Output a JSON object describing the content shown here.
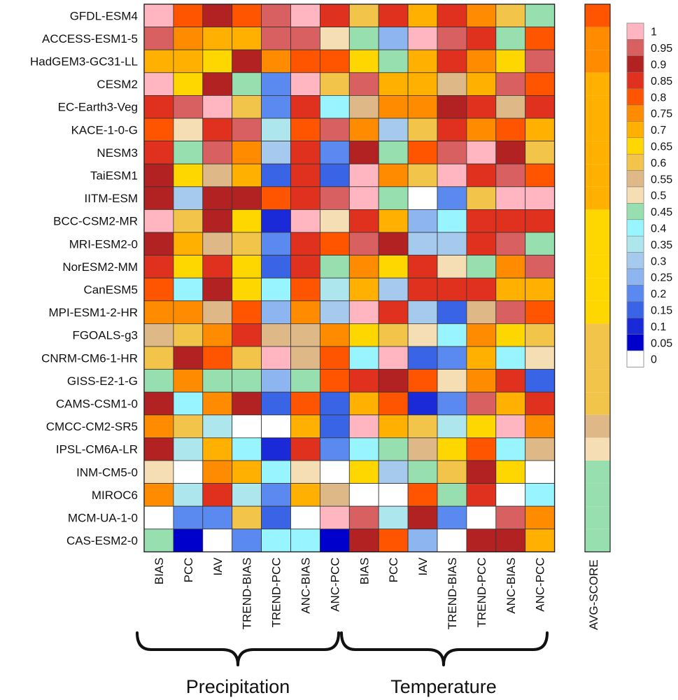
{
  "chart_data": {
    "type": "heatmap",
    "rows": [
      "GFDL-ESM4",
      "ACCESS-ESM1-5",
      "HadGEM3-GC31-LL",
      "CESM2",
      "EC-Earth3-Veg",
      "KACE-1-0-G",
      "NESM3",
      "TaiESM1",
      "IITM-ESM",
      "BCC-CSM2-MR",
      "MRI-ESM2-0",
      "NorESM2-MM",
      "CanESM5",
      "MPI-ESM1-2-HR",
      "FGOALS-g3",
      "CNRM-CM6-1-HR",
      "GISS-E2-1-G",
      "CAMS-CSM1-0",
      "CMCC-CM2-SR5",
      "IPSL-CM6A-LR",
      "INM-CM5-0",
      "MIROC6",
      "MCM-UA-1-0",
      "CAS-ESM2-0"
    ],
    "columns": [
      "BIAS",
      "PCC",
      "IAV",
      "TREND-BIAS",
      "TREND-PCC",
      "ANC-BIAS",
      "ANC-PCC",
      "BIAS",
      "PCC",
      "IAV",
      "TREND-BIAS",
      "TREND-PCC",
      "ANC-BIAS",
      "ANC-PCC"
    ],
    "groups": [
      {
        "name": "Precipitation",
        "start": 0,
        "end": 6
      },
      {
        "name": "Temperature",
        "start": 7,
        "end": 13
      }
    ],
    "values": [
      [
        1.0,
        0.8,
        0.9,
        0.8,
        0.95,
        1.0,
        0.85,
        0.6,
        0.85,
        0.7,
        0.85,
        0.75,
        0.6,
        0.45
      ],
      [
        0.95,
        0.75,
        0.7,
        0.7,
        0.95,
        0.95,
        0.5,
        0.45,
        0.25,
        1.0,
        0.95,
        0.85,
        0.45,
        0.8
      ],
      [
        0.7,
        0.7,
        0.65,
        0.9,
        0.75,
        0.8,
        0.8,
        0.65,
        0.45,
        0.7,
        0.85,
        0.75,
        0.65,
        0.95
      ],
      [
        1.0,
        0.65,
        0.9,
        0.45,
        0.2,
        1.0,
        0.6,
        0.95,
        0.7,
        0.7,
        0.55,
        0.7,
        0.95,
        0.8
      ],
      [
        0.85,
        0.95,
        1.0,
        0.6,
        0.2,
        0.85,
        0.4,
        0.55,
        0.75,
        0.75,
        0.9,
        0.85,
        0.55,
        0.85
      ],
      [
        0.8,
        0.5,
        0.85,
        0.95,
        0.35,
        0.8,
        0.95,
        0.75,
        0.3,
        0.6,
        0.85,
        0.75,
        0.8,
        0.7
      ],
      [
        0.85,
        0.45,
        0.95,
        0.75,
        0.3,
        0.85,
        0.2,
        0.9,
        0.45,
        0.8,
        0.95,
        1.0,
        0.9,
        0.6
      ],
      [
        0.9,
        0.65,
        0.55,
        0.7,
        0.15,
        0.85,
        0.15,
        1.0,
        0.75,
        0.6,
        1.0,
        0.85,
        0.95,
        0.8
      ],
      [
        0.9,
        0.3,
        0.9,
        0.9,
        0.8,
        0.85,
        0.95,
        1.0,
        0.45,
        0.0,
        0.2,
        0.6,
        1.0,
        1.0
      ],
      [
        1.0,
        0.6,
        0.9,
        0.65,
        0.1,
        1.0,
        0.5,
        0.85,
        0.7,
        0.25,
        0.4,
        0.85,
        0.85,
        0.85
      ],
      [
        0.9,
        0.7,
        0.55,
        0.6,
        0.2,
        0.85,
        0.8,
        0.95,
        0.9,
        0.3,
        0.3,
        0.85,
        0.95,
        0.45
      ],
      [
        0.85,
        0.65,
        0.85,
        0.65,
        0.15,
        0.85,
        0.45,
        0.75,
        0.65,
        0.85,
        0.5,
        0.45,
        0.75,
        0.95
      ],
      [
        0.8,
        0.4,
        0.9,
        0.65,
        0.4,
        0.8,
        0.35,
        0.7,
        0.3,
        0.85,
        0.85,
        0.85,
        0.7,
        0.7
      ],
      [
        0.75,
        0.75,
        0.55,
        0.8,
        0.25,
        0.75,
        0.3,
        1.0,
        0.85,
        0.3,
        0.15,
        0.55,
        0.95,
        0.8
      ],
      [
        0.55,
        0.6,
        0.75,
        0.85,
        0.55,
        0.55,
        0.75,
        0.65,
        0.6,
        0.5,
        0.4,
        0.75,
        0.65,
        0.6
      ],
      [
        0.6,
        0.9,
        0.8,
        0.6,
        1.0,
        0.55,
        0.8,
        0.4,
        1.0,
        0.15,
        0.2,
        0.7,
        0.4,
        0.5
      ],
      [
        0.45,
        0.75,
        0.45,
        0.45,
        0.25,
        0.45,
        0.8,
        0.85,
        0.9,
        0.8,
        0.5,
        0.75,
        0.85,
        0.15
      ],
      [
        0.9,
        0.4,
        0.75,
        0.9,
        0.15,
        0.8,
        0.15,
        0.7,
        0.8,
        0.1,
        0.2,
        0.95,
        0.7,
        0.85
      ],
      [
        0.75,
        0.6,
        0.35,
        0.0,
        0.0,
        0.7,
        0.15,
        1.0,
        0.7,
        0.6,
        0.35,
        0.65,
        1.0,
        0.75
      ],
      [
        0.9,
        0.35,
        0.7,
        0.4,
        0.1,
        0.85,
        0.2,
        0.4,
        0.45,
        0.55,
        0.65,
        0.8,
        0.4,
        0.55
      ],
      [
        0.5,
        0.0,
        0.75,
        0.7,
        0.4,
        0.5,
        0.0,
        0.65,
        0.3,
        0.45,
        0.6,
        0.9,
        0.65,
        0.0
      ],
      [
        0.75,
        0.35,
        0.85,
        0.35,
        0.2,
        0.7,
        0.55,
        0.0,
        0.0,
        0.8,
        0.45,
        0.85,
        0.0,
        0.4
      ],
      [
        0.0,
        0.2,
        0.2,
        0.6,
        0.15,
        0.0,
        1.0,
        0.95,
        0.35,
        0.9,
        0.2,
        0.0,
        0.95,
        0.75
      ],
      [
        0.45,
        0.05,
        0.0,
        0.2,
        0.4,
        0.4,
        0.05,
        0.9,
        0.8,
        0.25,
        0.0,
        0.9,
        0.9,
        0.7
      ]
    ],
    "avg_label": "AVG-SCORE",
    "avg_values": [
      0.8,
      0.75,
      0.75,
      0.7,
      0.7,
      0.7,
      0.7,
      0.7,
      0.7,
      0.65,
      0.65,
      0.65,
      0.65,
      0.65,
      0.6,
      0.6,
      0.6,
      0.6,
      0.55,
      0.5,
      0.45,
      0.45,
      0.45,
      0.45
    ],
    "colorbar": {
      "ticks": [
        "1",
        "0.95",
        "0.9",
        "0.85",
        "0.8",
        "0.75",
        "0.7",
        "0.65",
        "0.6",
        "0.55",
        "0.5",
        "0.45",
        "0.4",
        "0.35",
        "0.3",
        "0.25",
        "0.2",
        "0.15",
        "0.1",
        "0.05",
        "0"
      ],
      "colors": [
        "#FFB6C1",
        "#D96060",
        "#B22222",
        "#E0301E",
        "#FF5400",
        "#FF8C00",
        "#FFB000",
        "#FFD700",
        "#F2C44A",
        "#DEB887",
        "#F5DEB3",
        "#98DFB0",
        "#98F5FF",
        "#AEE6EE",
        "#A6C9EE",
        "#8DB5F0",
        "#5A8AF0",
        "#3A64E6",
        "#1A2AD8",
        "#0000CD",
        "#FFFFFF"
      ]
    }
  }
}
